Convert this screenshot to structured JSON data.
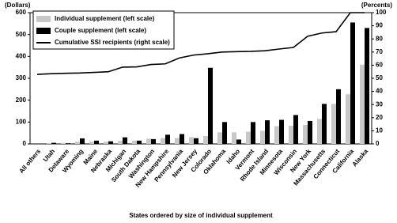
{
  "chart_data": {
    "type": "bar",
    "y_label": "(Dollars)",
    "y2_label": "(Percents)",
    "x_label": "States ordered by size of individual supplement",
    "categories": [
      "All others",
      "Utah",
      "Delaware",
      "Wyoming",
      "Maine",
      "Nebraska",
      "Michigan",
      "South Dakota",
      "Washington",
      "New Hampshire",
      "Pennsylvania",
      "New Jersey",
      "Colorado",
      "Oklahoma",
      "Idaho",
      "Vermont",
      "Rhode Island",
      "Minnesota",
      "Wisconsin",
      "New York",
      "Massachusetts",
      "Connecticut",
      "California",
      "Alaska"
    ],
    "series": [
      {
        "name": "Individual supplement (left scale)",
        "color": "#c8c8c8",
        "values": [
          0,
          4,
          5,
          10,
          10,
          10,
          14,
          15,
          24,
          27,
          27,
          31,
          36,
          53,
          53,
          56,
          60,
          81,
          83,
          87,
          114,
          183,
          227,
          362
        ]
      },
      {
        "name": "Couple supplement (left scale)",
        "color": "#000000",
        "values": [
          0,
          5,
          3,
          25,
          15,
          12,
          30,
          15,
          22,
          42,
          45,
          26,
          348,
          100,
          20,
          100,
          108,
          110,
          132,
          105,
          183,
          250,
          555,
          530
        ]
      },
      {
        "name": "Cumulative SSI recipients (right scale)",
        "color": "#000000",
        "axis": "y2",
        "values": [
          53,
          53.5,
          53.8,
          54,
          54.5,
          55,
          58.5,
          58.7,
          60.5,
          61,
          65.5,
          67.7,
          68.7,
          70,
          70.3,
          70.5,
          71,
          72.3,
          73.5,
          82,
          84.5,
          85.5,
          100,
          100
        ]
      }
    ],
    "ylim": [
      0,
      600
    ],
    "yticks": [
      0,
      100,
      200,
      300,
      400,
      500,
      600
    ],
    "y2lim": [
      0,
      100
    ],
    "y2ticks": [
      0,
      10,
      20,
      30,
      40,
      50,
      60,
      70,
      80,
      90,
      100
    ]
  }
}
